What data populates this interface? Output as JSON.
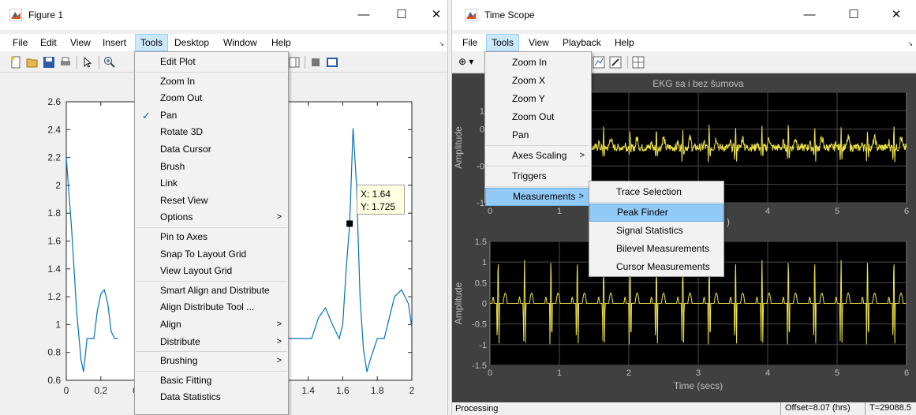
{
  "figure": {
    "title": "Figure 1",
    "window_controls": [
      "—",
      "☐",
      "✕"
    ],
    "menu": [
      "File",
      "Edit",
      "View",
      "Insert",
      "Tools",
      "Desktop",
      "Window",
      "Help"
    ],
    "menu_active": "Tools",
    "datatip": {
      "x_text": "X: 1.64",
      "y_text": "Y: 1.725"
    },
    "chart_data": {
      "type": "line",
      "title": "",
      "xlabel": "",
      "ylabel": "",
      "xlim": [
        0,
        2
      ],
      "ylim": [
        0.6,
        2.6
      ],
      "xticks_visible": [
        "0",
        "0.2",
        "0",
        "1.4",
        "1.6",
        "1.8",
        "2"
      ],
      "yticks": [
        "0.6",
        "0.8",
        "1",
        "1.2",
        "1.4",
        "1.6",
        "1.8",
        "2",
        "2.2",
        "2.4",
        "2.6"
      ],
      "series": [
        {
          "x": [
            0,
            0.03,
            0.06,
            0.085,
            0.1,
            0.12,
            0.14,
            0.16,
            0.18,
            0.2,
            0.22,
            0.24,
            0.26,
            0.28,
            0.3
          ],
          "y": [
            2.2,
            1.7,
            1.1,
            0.75,
            0.66,
            0.9,
            0.9,
            0.9,
            1.1,
            1.22,
            1.25,
            1.15,
            0.95,
            0.9,
            0.9
          ]
        },
        {
          "x": [
            1.26,
            1.3,
            1.34,
            1.38,
            1.42,
            1.46,
            1.5,
            1.54,
            1.58,
            1.6,
            1.62,
            1.64,
            1.66,
            1.68,
            1.7,
            1.72,
            1.74,
            1.76,
            1.8,
            1.84,
            1.88,
            1.9,
            1.94,
            1.98,
            2.0
          ],
          "y": [
            0.9,
            0.9,
            0.9,
            0.9,
            0.9,
            1.05,
            1.12,
            1.0,
            0.9,
            1.0,
            1.4,
            1.725,
            2.41,
            2.0,
            1.2,
            0.82,
            0.66,
            0.75,
            0.9,
            0.9,
            1.1,
            1.2,
            1.25,
            1.15,
            0.98
          ]
        }
      ],
      "marker": {
        "x": 1.64,
        "y": 1.725
      },
      "grid": false,
      "line_color": "#0072bd"
    }
  },
  "tools_menu": {
    "items": [
      {
        "label": "Edit Plot",
        "checked": false,
        "submenu": false,
        "sep_after": true
      },
      {
        "label": "Zoom In",
        "checked": false,
        "submenu": false
      },
      {
        "label": "Zoom Out",
        "checked": false,
        "submenu": false
      },
      {
        "label": "Pan",
        "checked": true,
        "submenu": false
      },
      {
        "label": "Rotate 3D",
        "checked": false,
        "submenu": false
      },
      {
        "label": "Data Cursor",
        "checked": false,
        "submenu": false
      },
      {
        "label": "Brush",
        "checked": false,
        "submenu": false
      },
      {
        "label": "Link",
        "checked": false,
        "submenu": false
      },
      {
        "label": "Reset View",
        "checked": false,
        "submenu": false
      },
      {
        "label": "Options",
        "checked": false,
        "submenu": true,
        "sep_after": true
      },
      {
        "label": "Pin to Axes",
        "checked": false,
        "submenu": false
      },
      {
        "label": "Snap To Layout Grid",
        "checked": false,
        "submenu": false
      },
      {
        "label": "View Layout Grid",
        "checked": false,
        "submenu": false,
        "sep_after": true
      },
      {
        "label": "Smart Align and Distribute",
        "checked": false,
        "submenu": false
      },
      {
        "label": "Align Distribute Tool ...",
        "checked": false,
        "submenu": false
      },
      {
        "label": "Align",
        "checked": false,
        "submenu": true
      },
      {
        "label": "Distribute",
        "checked": false,
        "submenu": true,
        "sep_after": true
      },
      {
        "label": "Brushing",
        "checked": false,
        "submenu": true,
        "sep_after": true
      },
      {
        "label": "Basic Fitting",
        "checked": false,
        "submenu": false
      },
      {
        "label": "Data Statistics",
        "checked": false,
        "submenu": false
      }
    ],
    "submenu_arrow": ">",
    "check_mark": "✓"
  },
  "timescope": {
    "title": "Time Scope",
    "window_controls": [
      "—",
      "☐",
      "✕"
    ],
    "menu": [
      "File",
      "Tools",
      "View",
      "Playback",
      "Help"
    ],
    "menu_active": "Tools",
    "zoom_tool": "⊕ ▾",
    "plot_title": "EKG sa i bez šumova",
    "ylabel": "Amplitude",
    "xlabel": "Time (secs)",
    "top_yticks_visible": [
      "1.",
      "0.",
      "-0.",
      "-1."
    ],
    "bottom_yticks": [
      "1.5",
      "1",
      "0.5",
      "0",
      "-0.5",
      "-1",
      "-1.5"
    ],
    "xticks": [
      "0",
      "1",
      "2",
      "3",
      "4",
      "5",
      "6"
    ],
    "top_xticks_visible": [
      "0",
      "1",
      "4",
      "5",
      "6"
    ],
    "top_xlabel_fragment": ")",
    "trace_color": "#f0e442",
    "status": {
      "state": "Processing",
      "offset": "Offset=8.07 (hrs)",
      "time": "T=29088.5"
    },
    "chart_data": [
      {
        "type": "line",
        "title": "EKG sa i bez šumova",
        "xlabel": "",
        "ylabel": "Amplitude",
        "xlim": [
          0,
          6
        ],
        "ylim": [
          -1.5,
          1.5
        ],
        "series": [
          {
            "name": "",
            "description_values": {
              "beat_period_s": 0.38,
              "baseline": 0.0,
              "peak": 0.5,
              "trough": -0.35,
              "noise": "high"
            }
          }
        ]
      },
      {
        "type": "line",
        "title": "",
        "xlabel": "Time (secs)",
        "ylabel": "Amplitude",
        "xlim": [
          0,
          6
        ],
        "ylim": [
          -1.5,
          1.5
        ],
        "series": [
          {
            "name": "",
            "description_values": {
              "beat_period_s": 0.38,
              "baseline": 0.0,
              "peak": 1.0,
              "trough": -1.0,
              "p_wave": 0.15,
              "t_wave": 0.25
            }
          }
        ]
      }
    ]
  },
  "scope_tools_menu": {
    "items": [
      {
        "label": "Zoom In",
        "submenu": false
      },
      {
        "label": "Zoom X",
        "submenu": false
      },
      {
        "label": "Zoom Y",
        "submenu": false
      },
      {
        "label": "Zoom Out",
        "submenu": false
      },
      {
        "label": "Pan",
        "submenu": false,
        "sep_after": true
      },
      {
        "label": "Axes Scaling",
        "submenu": true,
        "sep_after": true
      },
      {
        "label": "Triggers",
        "submenu": false,
        "sep_after": true
      },
      {
        "label": "Measurements",
        "submenu": true,
        "highlighted": true
      }
    ]
  },
  "measurements_menu": {
    "items": [
      {
        "label": "Trace Selection",
        "sep_after": true
      },
      {
        "label": "Peak Finder",
        "highlighted": true
      },
      {
        "label": "Signal Statistics"
      },
      {
        "label": "Bilevel Measurements"
      },
      {
        "label": "Cursor Measurements"
      }
    ]
  }
}
